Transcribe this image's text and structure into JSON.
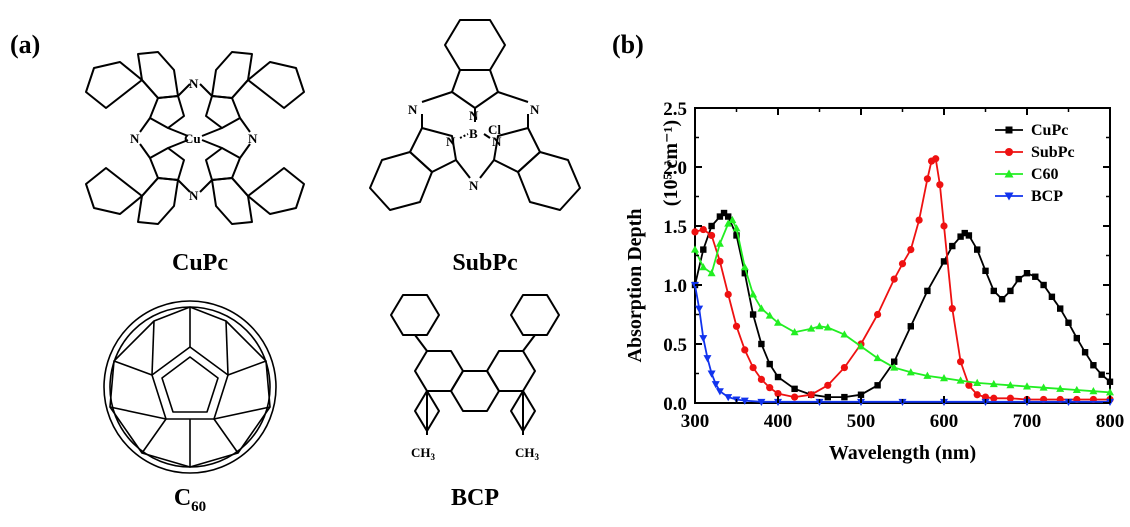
{
  "panels": {
    "a_label": "(a)",
    "b_label": "(b)"
  },
  "molecules": {
    "cupc": {
      "name": "CuPc",
      "metal": "Cu",
      "atom_n": "N"
    },
    "subpc": {
      "name": "SubPc",
      "atom_n": "N",
      "atom_b": "B",
      "atom_cl": "Cl"
    },
    "c60": {
      "name": "C",
      "subscript": "60"
    },
    "bcp": {
      "name": "BCP",
      "methyl": "CH",
      "methyl_sub": "3"
    }
  },
  "chart_data": {
    "type": "line",
    "xlabel": "Wavelength (nm)",
    "ylabel": "Absorption Depth",
    "ylabel_units": "(10⁵ cm⁻¹)",
    "xlim": [
      300,
      800
    ],
    "ylim": [
      0,
      2.5
    ],
    "xticks": [
      "300",
      "400",
      "500",
      "600",
      "700",
      "800"
    ],
    "yticks": [
      "0.0",
      "0.5",
      "1.0",
      "1.5",
      "2.0",
      "2.5"
    ],
    "grid": false,
    "legend_position": "top-right",
    "series": [
      {
        "name": "CuPc",
        "color": "#000000",
        "marker": "square",
        "x": [
          300,
          310,
          320,
          330,
          335,
          340,
          350,
          360,
          370,
          380,
          390,
          400,
          420,
          440,
          460,
          480,
          500,
          520,
          540,
          560,
          580,
          600,
          610,
          620,
          625,
          630,
          640,
          650,
          660,
          670,
          680,
          690,
          700,
          710,
          720,
          730,
          740,
          750,
          760,
          770,
          780,
          790,
          800
        ],
        "y": [
          1.0,
          1.3,
          1.5,
          1.58,
          1.61,
          1.58,
          1.42,
          1.1,
          0.75,
          0.5,
          0.33,
          0.22,
          0.12,
          0.07,
          0.05,
          0.05,
          0.07,
          0.15,
          0.35,
          0.65,
          0.95,
          1.2,
          1.33,
          1.41,
          1.44,
          1.42,
          1.3,
          1.12,
          0.95,
          0.88,
          0.95,
          1.05,
          1.1,
          1.07,
          1.0,
          0.9,
          0.8,
          0.68,
          0.55,
          0.43,
          0.32,
          0.24,
          0.18
        ]
      },
      {
        "name": "SubPc",
        "color": "#ee1111",
        "marker": "circle",
        "x": [
          300,
          310,
          320,
          330,
          340,
          350,
          360,
          370,
          380,
          390,
          400,
          420,
          440,
          460,
          480,
          500,
          520,
          540,
          550,
          560,
          570,
          580,
          585,
          590,
          595,
          600,
          610,
          620,
          630,
          640,
          650,
          660,
          680,
          700,
          720,
          740,
          760,
          780,
          800
        ],
        "y": [
          1.45,
          1.47,
          1.42,
          1.2,
          0.92,
          0.65,
          0.45,
          0.3,
          0.2,
          0.13,
          0.08,
          0.05,
          0.07,
          0.15,
          0.3,
          0.5,
          0.75,
          1.05,
          1.18,
          1.3,
          1.55,
          1.9,
          2.05,
          2.07,
          1.85,
          1.5,
          0.8,
          0.35,
          0.15,
          0.07,
          0.05,
          0.04,
          0.04,
          0.03,
          0.03,
          0.03,
          0.03,
          0.03,
          0.03
        ]
      },
      {
        "name": "C60",
        "color": "#22ee22",
        "marker": "triangle-up",
        "x": [
          300,
          310,
          320,
          330,
          340,
          345,
          350,
          360,
          370,
          380,
          390,
          400,
          420,
          440,
          450,
          460,
          480,
          500,
          520,
          540,
          560,
          580,
          600,
          620,
          640,
          660,
          680,
          700,
          720,
          740,
          760,
          780,
          800
        ],
        "y": [
          1.3,
          1.15,
          1.1,
          1.35,
          1.52,
          1.55,
          1.48,
          1.15,
          0.92,
          0.8,
          0.74,
          0.68,
          0.6,
          0.63,
          0.65,
          0.64,
          0.58,
          0.48,
          0.38,
          0.3,
          0.26,
          0.23,
          0.21,
          0.19,
          0.17,
          0.16,
          0.15,
          0.14,
          0.13,
          0.12,
          0.11,
          0.1,
          0.09
        ]
      },
      {
        "name": "BCP",
        "color": "#1133ee",
        "marker": "triangle-down",
        "x": [
          300,
          305,
          310,
          315,
          320,
          325,
          330,
          340,
          350,
          360,
          380,
          400,
          450,
          500,
          550,
          600,
          650,
          700,
          750,
          800
        ],
        "y": [
          1.0,
          0.8,
          0.55,
          0.38,
          0.25,
          0.16,
          0.1,
          0.05,
          0.03,
          0.02,
          0.01,
          0.01,
          0.01,
          0.01,
          0.01,
          0.01,
          0.01,
          0.01,
          0.01,
          0.01
        ]
      }
    ]
  }
}
